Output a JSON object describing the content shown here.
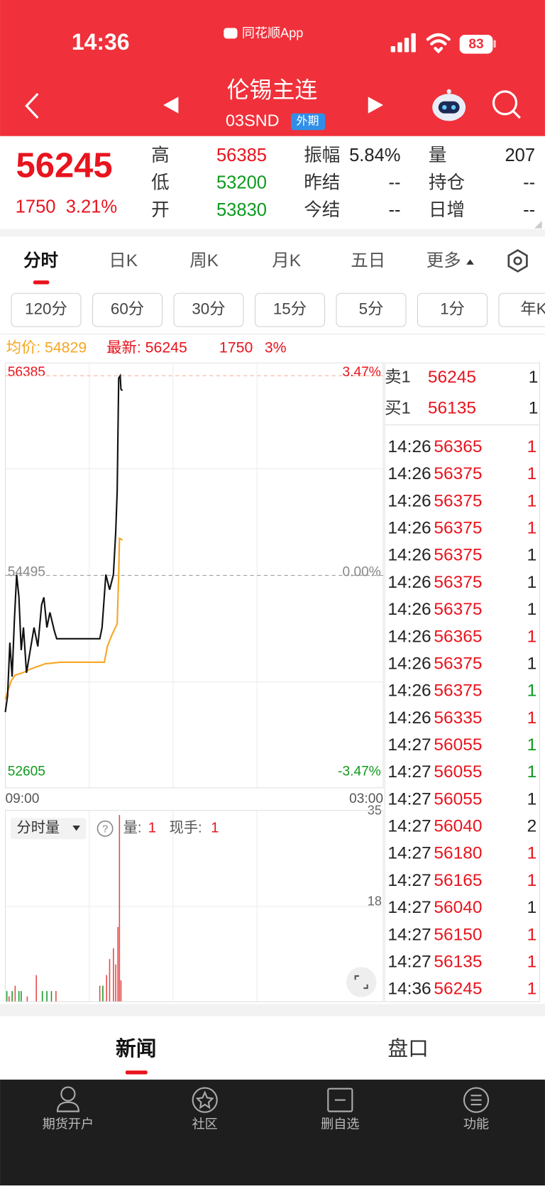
{
  "status": {
    "time": "14:36",
    "app": "同花顺App",
    "battery": "83"
  },
  "header": {
    "title": "伦锡主连",
    "code": "03SND",
    "tag": "外期"
  },
  "quote": {
    "price": "56245",
    "change": "1750",
    "pct": "3.21%",
    "stats": [
      {
        "label": "高",
        "value": "56385",
        "color": "#e8141e"
      },
      {
        "label": "振幅",
        "value": "5.84%",
        "color": "#222222"
      },
      {
        "label": "量",
        "value": "207",
        "color": "#222222"
      },
      {
        "label": "低",
        "value": "53200",
        "color": "#0f9a1e"
      },
      {
        "label": "昨结",
        "value": "--",
        "color": "#222222"
      },
      {
        "label": "持仓",
        "value": "--",
        "color": "#222222"
      },
      {
        "label": "开",
        "value": "53830",
        "color": "#0f9a1e"
      },
      {
        "label": "今结",
        "value": "--",
        "color": "#222222"
      },
      {
        "label": "日增",
        "value": "--",
        "color": "#222222"
      }
    ]
  },
  "tabs": [
    "分时",
    "日K",
    "周K",
    "月K",
    "五日",
    "更多"
  ],
  "periods": [
    "120分",
    "60分",
    "30分",
    "15分",
    "5分",
    "1分",
    "年K"
  ],
  "info": {
    "avg": "均价: 54829",
    "last": "最新: 56245",
    "change": "1750",
    "pct": "3%"
  },
  "chart": {
    "type": "line",
    "ylim": [
      52605,
      56385
    ],
    "yticks": [
      52605,
      54495,
      56385
    ],
    "y2lim": [
      -3.47,
      3.47
    ],
    "y2ticks": [
      {
        "value": -3.47,
        "label": "-3.47%"
      },
      {
        "value": 0,
        "label": "0.00%"
      },
      {
        "value": 3.47,
        "label": "3.47%"
      }
    ],
    "xlim": [
      0,
      500
    ],
    "xticks": [
      {
        "value": 0,
        "label": "09:00"
      },
      {
        "value": 500,
        "label": "03:00"
      }
    ],
    "series": [
      {
        "color": "#111111",
        "x": [
          0,
          3,
          6,
          9,
          12,
          15,
          18,
          21,
          24,
          28,
          33,
          38,
          43,
          48,
          51,
          55,
          59,
          65,
          68,
          83,
          103,
          125,
          128,
          133,
          138,
          143,
          146,
          148,
          150,
          152,
          153,
          155
        ],
        "values": [
          53200,
          53357,
          53858,
          53536,
          54073,
          54502,
          54287,
          53786,
          54001,
          53572,
          53786,
          54001,
          53822,
          54216,
          54287,
          54001,
          54144,
          53965,
          53894,
          53894,
          53894,
          53894,
          54001,
          54502,
          54359,
          54502,
          54896,
          55290,
          56363,
          56385,
          56256,
          56245
        ]
      },
      {
        "color": "#f5a623",
        "x": [
          0,
          3,
          8,
          13,
          23,
          33,
          53,
          73,
          93,
          131,
          135,
          141,
          148,
          150,
          151,
          155
        ],
        "values": [
          53321,
          53393,
          53500,
          53550,
          53572,
          53607,
          53658,
          53672,
          53672,
          53672,
          53822,
          53930,
          54037,
          54502,
          54846,
          54829
        ]
      }
    ],
    "volume": {
      "label": "分时量",
      "qty_label": "量:",
      "qty": "1",
      "hand_label": "现手:",
      "hand": "1",
      "ylim": [
        0,
        35
      ],
      "yticks": [
        18,
        35
      ],
      "x": [
        2,
        5,
        9,
        13,
        18,
        21,
        29,
        41,
        49,
        55,
        61,
        67,
        125,
        129,
        134,
        138,
        143,
        146,
        149,
        151,
        153
      ],
      "values": [
        2,
        1,
        2,
        3,
        2,
        2,
        1,
        5,
        2,
        2,
        2,
        2,
        3,
        3,
        5,
        8,
        10,
        7,
        14,
        35,
        4
      ],
      "colors": [
        "#1a9a2a",
        "#e84a4a",
        "#1a9a2a",
        "#e84a4a",
        "#1a9a2a",
        "#1a9a2a",
        "#e84a4a",
        "#e84a4a",
        "#1a9a2a",
        "#1a9a2a",
        "#1a9a2a",
        "#e84a4a",
        "#e84a4a",
        "#1a9a2a",
        "#e84a4a",
        "#e84a4a",
        "#e84a4a",
        "#e84a4a",
        "#e84a4a",
        "#e84a4a",
        "#e84a4a"
      ]
    }
  },
  "book": [
    {
      "side": "卖1",
      "price": "56245",
      "vol": "1"
    },
    {
      "side": "买1",
      "price": "56135",
      "vol": "1"
    }
  ],
  "trades": [
    {
      "time": "14:26",
      "price": "56365",
      "vol": "1",
      "vol_color": "#e8141e"
    },
    {
      "time": "14:26",
      "price": "56375",
      "vol": "1",
      "vol_color": "#e8141e"
    },
    {
      "time": "14:26",
      "price": "56375",
      "vol": "1",
      "vol_color": "#e8141e"
    },
    {
      "time": "14:26",
      "price": "56375",
      "vol": "1",
      "vol_color": "#e8141e"
    },
    {
      "time": "14:26",
      "price": "56375",
      "vol": "1",
      "vol_color": "#222222"
    },
    {
      "time": "14:26",
      "price": "56375",
      "vol": "1",
      "vol_color": "#222222"
    },
    {
      "time": "14:26",
      "price": "56375",
      "vol": "1",
      "vol_color": "#222222"
    },
    {
      "time": "14:26",
      "price": "56365",
      "vol": "1",
      "vol_color": "#e8141e"
    },
    {
      "time": "14:26",
      "price": "56375",
      "vol": "1",
      "vol_color": "#222222"
    },
    {
      "time": "14:26",
      "price": "56375",
      "vol": "1",
      "vol_color": "#0f9a1e"
    },
    {
      "time": "14:26",
      "price": "56335",
      "vol": "1",
      "vol_color": "#e8141e"
    },
    {
      "time": "14:27",
      "price": "56055",
      "vol": "1",
      "vol_color": "#0f9a1e"
    },
    {
      "time": "14:27",
      "price": "56055",
      "vol": "1",
      "vol_color": "#0f9a1e"
    },
    {
      "time": "14:27",
      "price": "56055",
      "vol": "1",
      "vol_color": "#222222"
    },
    {
      "time": "14:27",
      "price": "56040",
      "vol": "2",
      "vol_color": "#222222"
    },
    {
      "time": "14:27",
      "price": "56180",
      "vol": "1",
      "vol_color": "#e8141e"
    },
    {
      "time": "14:27",
      "price": "56165",
      "vol": "1",
      "vol_color": "#e8141e"
    },
    {
      "time": "14:27",
      "price": "56040",
      "vol": "1",
      "vol_color": "#222222"
    },
    {
      "time": "14:27",
      "price": "56150",
      "vol": "1",
      "vol_color": "#e8141e"
    },
    {
      "time": "14:27",
      "price": "56135",
      "vol": "1",
      "vol_color": "#e8141e"
    },
    {
      "time": "14:36",
      "price": "56245",
      "vol": "1",
      "vol_color": "#e8141e"
    }
  ],
  "bottom_tabs": [
    "新闻",
    "盘口"
  ],
  "nav": [
    "期货开户",
    "社区",
    "删自选",
    "功能"
  ]
}
